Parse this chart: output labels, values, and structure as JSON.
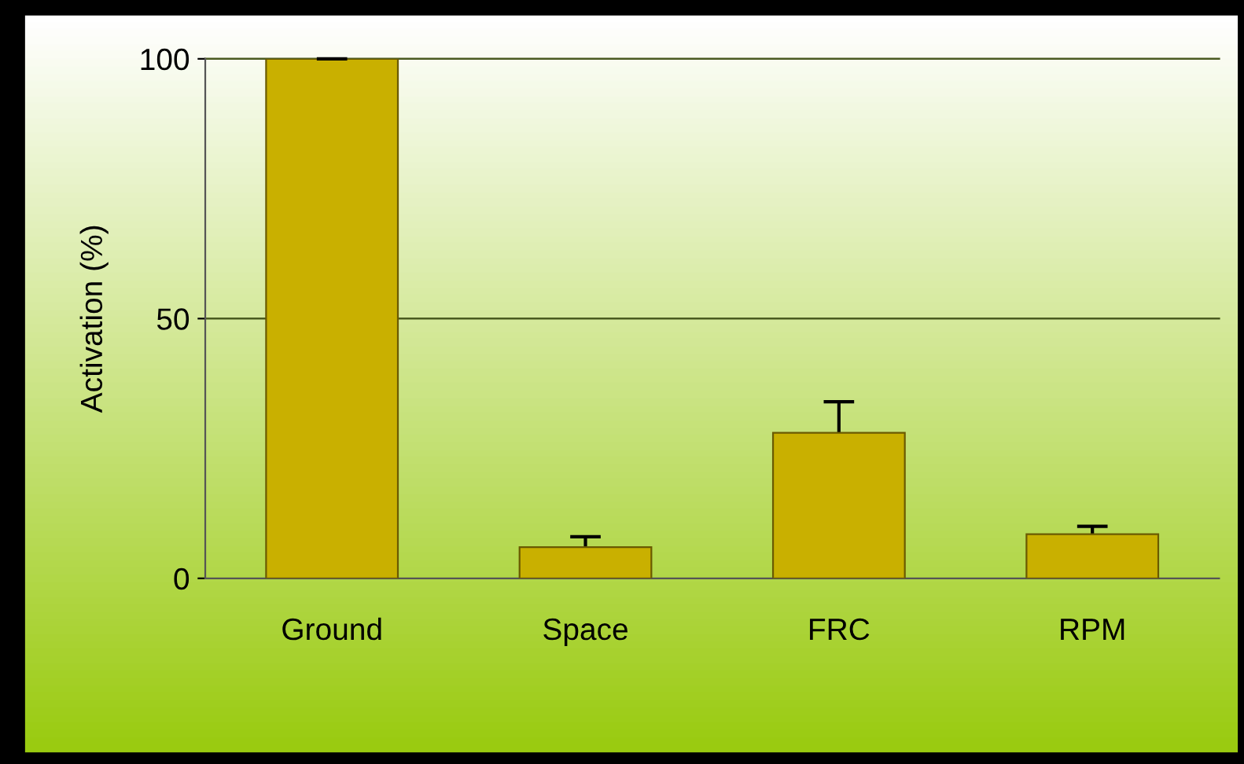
{
  "chart_data": {
    "type": "bar",
    "ylabel": "Activation (%)",
    "categories": [
      "Ground",
      "Space",
      "FRC",
      "RPM"
    ],
    "values": [
      100,
      6,
      28,
      8.5
    ],
    "errors": [
      0,
      2,
      6,
      1.5
    ],
    "color": "#c9b000",
    "ylim": [
      0,
      100
    ],
    "yticks": [
      0,
      50,
      100
    ],
    "ref_lines": [
      {
        "axis": "y",
        "value": 50,
        "color": "#4a5a20"
      },
      {
        "axis": "y",
        "value": 100,
        "color": "#4a5a20"
      }
    ]
  }
}
